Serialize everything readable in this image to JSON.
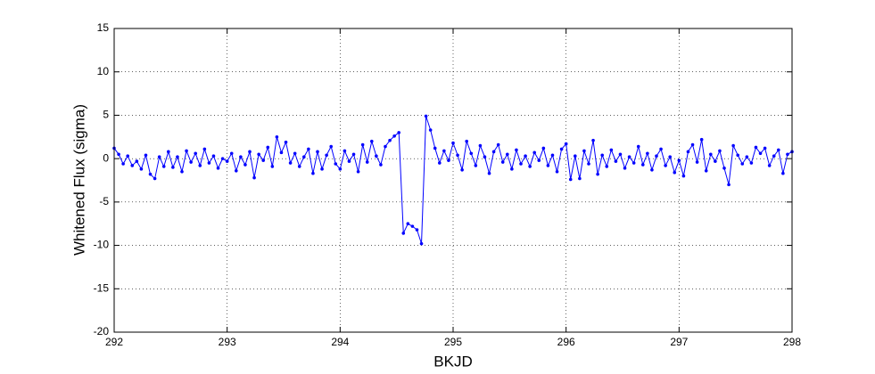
{
  "chart_data": {
    "type": "line",
    "x_label": "BKJD",
    "y_label": "Whitened Flux (sigma)",
    "xlim": [
      292,
      298
    ],
    "ylim": [
      -20,
      15
    ],
    "xticks": [
      292,
      293,
      294,
      295,
      296,
      297,
      298
    ],
    "yticks": [
      -20,
      -15,
      -10,
      -5,
      0,
      5,
      10,
      15
    ],
    "grid": true,
    "x": [
      292,
      292.04,
      292.08,
      292.12,
      292.16,
      292.2,
      292.24,
      292.28,
      292.32,
      292.36,
      292.4,
      292.44,
      292.48,
      292.52,
      292.56,
      292.6,
      292.64,
      292.68,
      292.72,
      292.76,
      292.8,
      292.84,
      292.88,
      292.92,
      292.96,
      293,
      293.04,
      293.08,
      293.12,
      293.16,
      293.2,
      293.24,
      293.28,
      293.32,
      293.36,
      293.4,
      293.44,
      293.48,
      293.52,
      293.56,
      293.6,
      293.64,
      293.68,
      293.72,
      293.76,
      293.8,
      293.84,
      293.88,
      293.92,
      293.96,
      294,
      294.04,
      294.08,
      294.12,
      294.16,
      294.2,
      294.24,
      294.28,
      294.32,
      294.36,
      294.4,
      294.44,
      294.48,
      294.52,
      294.56,
      294.6,
      294.64,
      294.68,
      294.72,
      294.76,
      294.8,
      294.84,
      294.88,
      294.92,
      294.96,
      295,
      295.04,
      295.08,
      295.12,
      295.16,
      295.2,
      295.24,
      295.28,
      295.32,
      295.36,
      295.4,
      295.44,
      295.48,
      295.52,
      295.56,
      295.6,
      295.64,
      295.68,
      295.72,
      295.76,
      295.8,
      295.84,
      295.88,
      295.92,
      295.96,
      296,
      296.04,
      296.08,
      296.12,
      296.16,
      296.2,
      296.24,
      296.28,
      296.32,
      296.36,
      296.4,
      296.44,
      296.48,
      296.52,
      296.56,
      296.6,
      296.64,
      296.68,
      296.72,
      296.76,
      296.8,
      296.84,
      296.88,
      296.92,
      296.96,
      297,
      297.04,
      297.08,
      297.12,
      297.16,
      297.2,
      297.24,
      297.28,
      297.32,
      297.36,
      297.4,
      297.44,
      297.48,
      297.52,
      297.56,
      297.6,
      297.64,
      297.68,
      297.72,
      297.76,
      297.8,
      297.84,
      297.88,
      297.92,
      297.96,
      298
    ],
    "series": [
      {
        "color": "#0000ff",
        "values": [
          1.2,
          0.5,
          -0.6,
          0.3,
          -0.8,
          -0.3,
          -1.2,
          0.4,
          -1.8,
          -2.3,
          0.2,
          -0.9,
          0.8,
          -1.0,
          0.2,
          -1.5,
          0.9,
          -0.4,
          0.6,
          -0.8,
          1.1,
          -0.5,
          0.3,
          -1.1,
          0.0,
          -0.3,
          0.6,
          -1.4,
          0.2,
          -0.7,
          0.8,
          -2.2,
          0.5,
          -0.2,
          1.3,
          -0.9,
          2.5,
          0.7,
          1.9,
          -0.5,
          0.6,
          -0.9,
          0.2,
          1.1,
          -1.7,
          0.8,
          -1.2,
          0.4,
          1.4,
          -0.6,
          -1.2,
          0.9,
          -0.3,
          0.5,
          -1.5,
          1.6,
          -0.4,
          2.0,
          0.3,
          -0.7,
          1.4,
          2.1,
          2.6,
          3.0,
          -8.6,
          -7.5,
          -7.8,
          -8.2,
          -9.8,
          4.9,
          3.3,
          1.2,
          -0.5,
          0.9,
          -0.2,
          1.8,
          0.4,
          -1.3,
          2.0,
          0.6,
          -0.8,
          1.5,
          0.2,
          -1.7,
          0.8,
          1.6,
          -0.4,
          0.5,
          -1.2,
          1.0,
          -0.6,
          0.3,
          -0.9,
          0.7,
          -0.2,
          1.2,
          -0.8,
          0.4,
          -1.5,
          1.1,
          1.7,
          -2.4,
          0.3,
          -2.3,
          0.9,
          -0.6,
          2.1,
          -1.8,
          0.4,
          -0.9,
          1.0,
          -0.3,
          0.5,
          -1.1,
          0.2,
          -0.5,
          1.4,
          -0.7,
          0.6,
          -1.3,
          0.3,
          1.1,
          -0.8,
          0.2,
          -1.6,
          -0.2,
          -2.0,
          0.8,
          1.6,
          -0.4,
          2.2,
          -1.4,
          0.5,
          -0.3,
          0.9,
          -1.1,
          -3.0,
          1.5,
          0.4,
          -0.6,
          0.2,
          -0.5,
          1.3,
          0.6,
          1.2,
          -0.8,
          0.3,
          1.0,
          -1.7,
          0.5,
          0.8
        ]
      }
    ]
  }
}
